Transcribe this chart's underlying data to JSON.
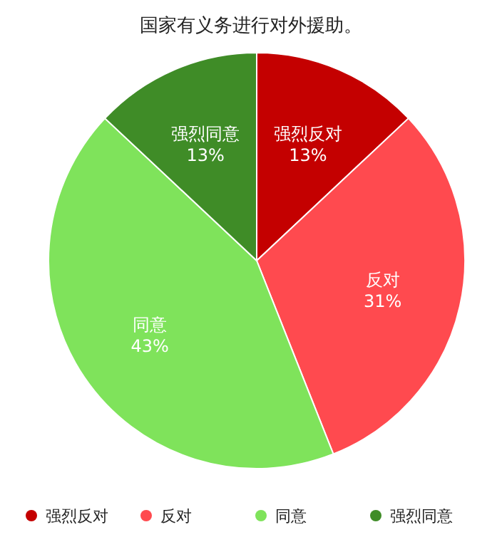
{
  "chart_data": {
    "type": "pie",
    "title": "国家有义务进行对外援助。",
    "categories": [
      "强烈反对",
      "反对",
      "同意",
      "强烈同意"
    ],
    "values": [
      13,
      31,
      43,
      13
    ],
    "value_labels": [
      "13%",
      "31%",
      "43%",
      "13%"
    ],
    "colors": [
      "#c40000",
      "#ff4a4f",
      "#7fe35b",
      "#3f8c27"
    ],
    "legend": "bottom"
  }
}
